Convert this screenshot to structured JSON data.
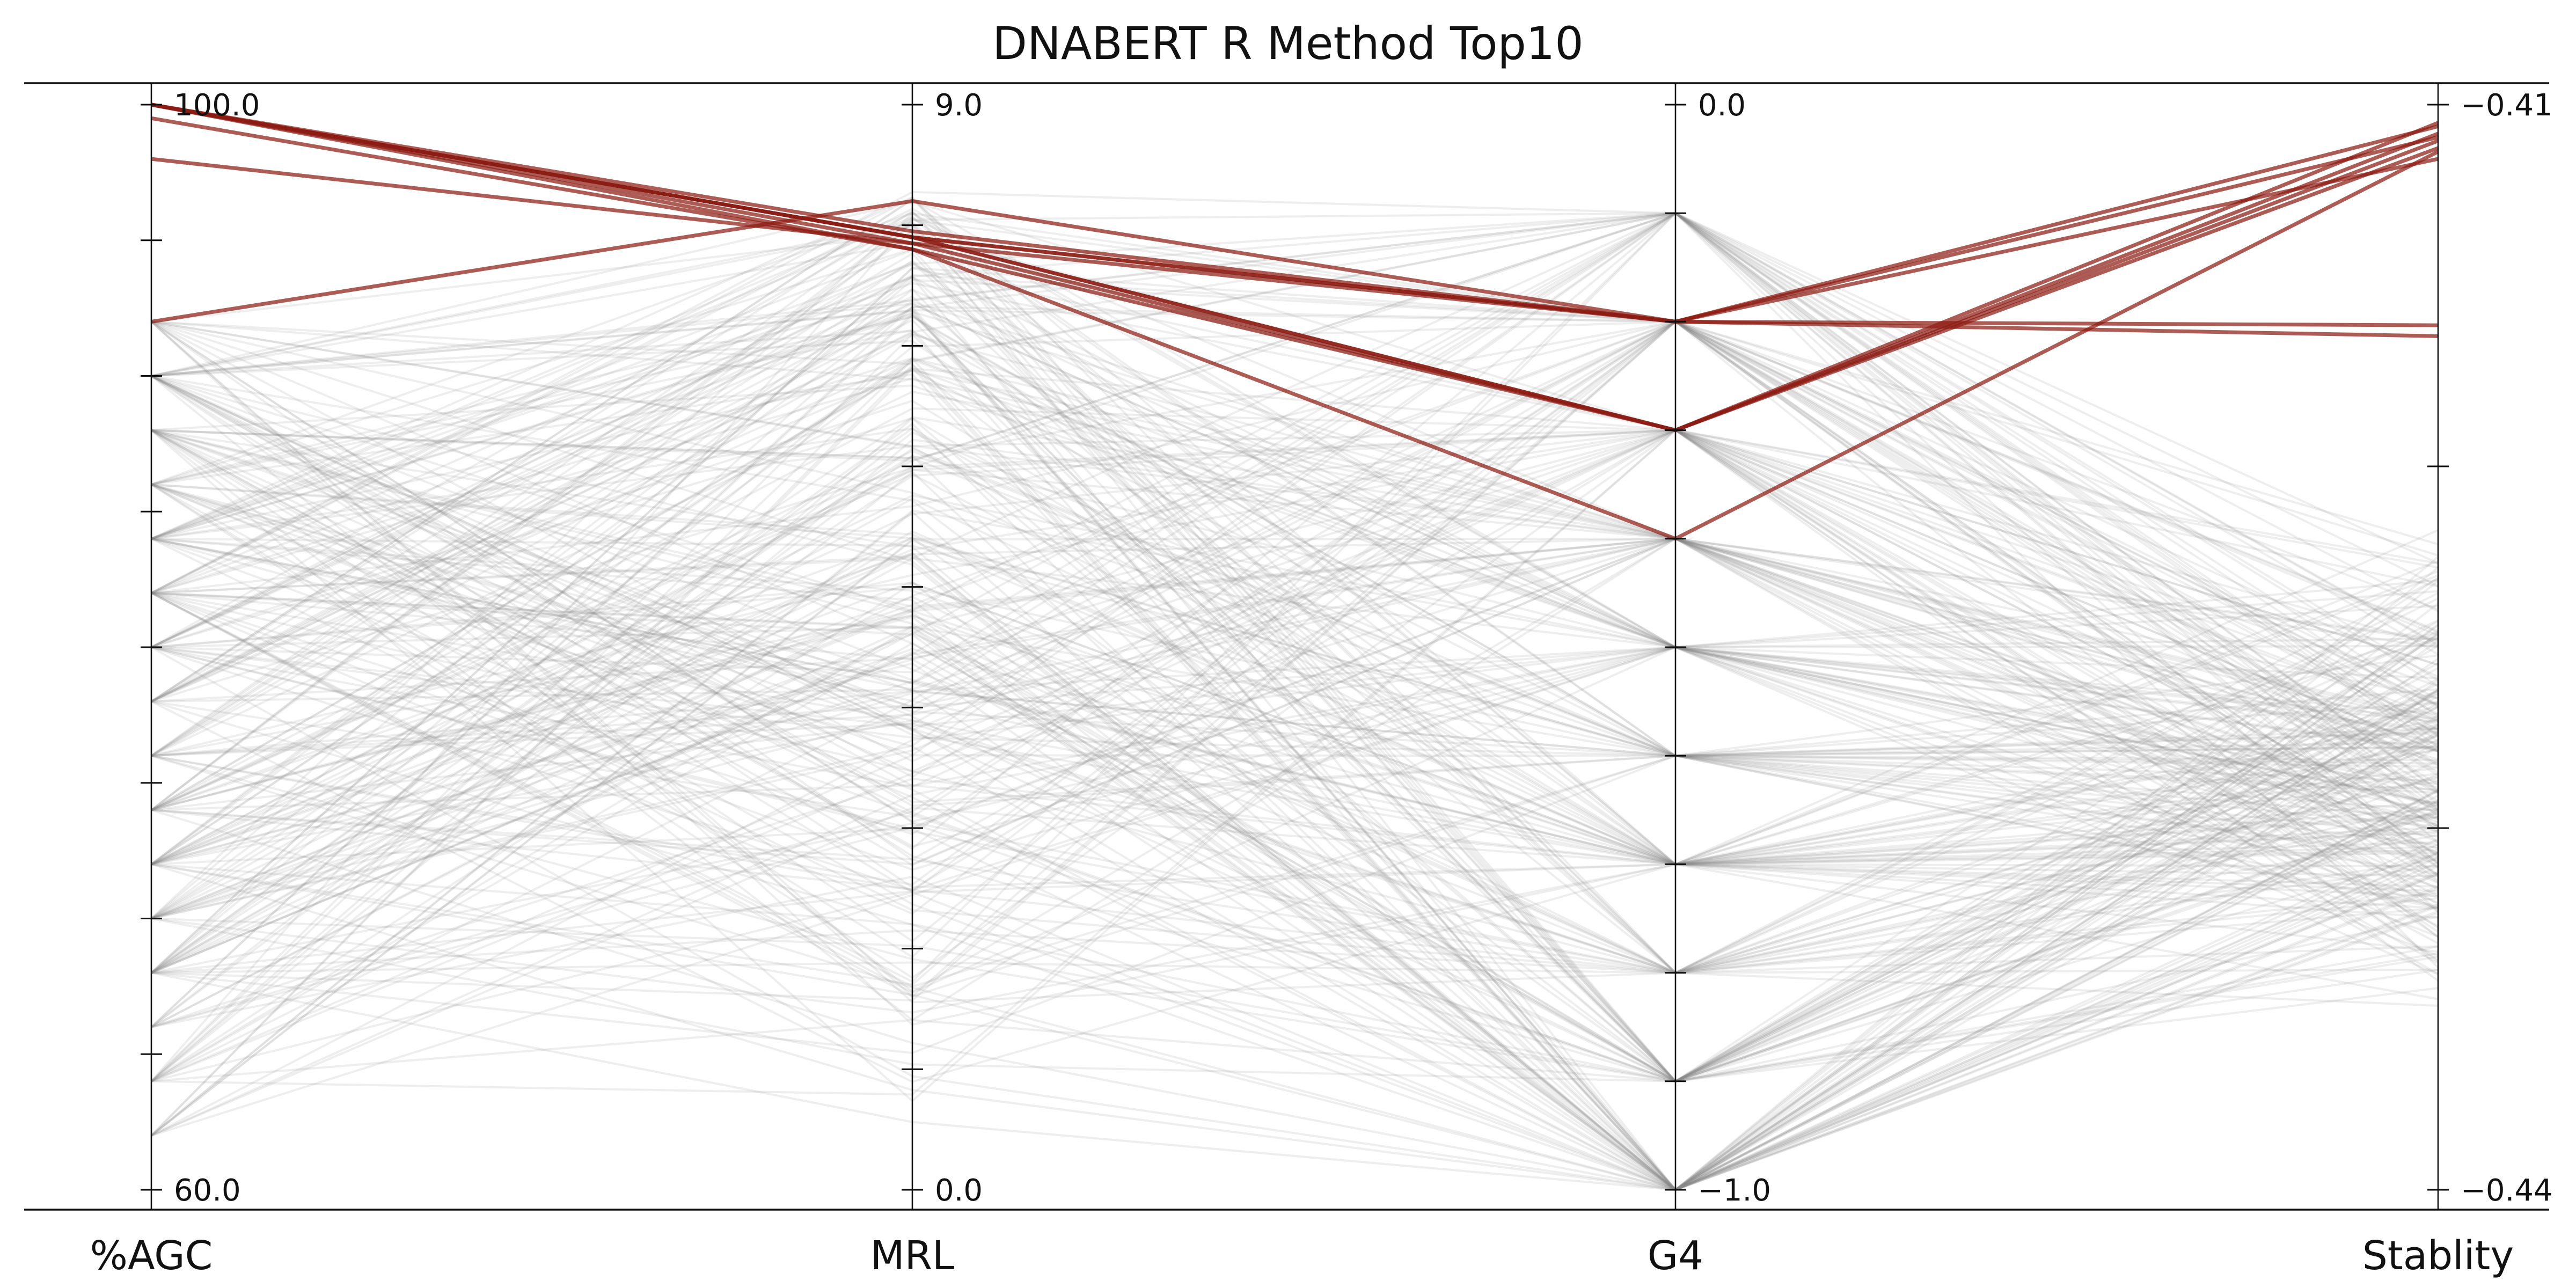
{
  "chart_data": {
    "type": "parallel-coordinates",
    "title": "DNABERT R Method Top10",
    "axes": [
      {
        "label": "%AGC",
        "range": [
          60.0,
          100.0
        ],
        "top_label": "100.0",
        "bottom_label": "60.0",
        "ticks": [
          60,
          65,
          70,
          75,
          80,
          85,
          90,
          95,
          100
        ]
      },
      {
        "label": "MRL",
        "range": [
          0.0,
          9.0
        ],
        "top_label": "9.0",
        "bottom_label": "0.0",
        "ticks": [
          0,
          1,
          2,
          3,
          4,
          5,
          6,
          7,
          8,
          9
        ]
      },
      {
        "label": "G4",
        "range": [
          -1.0,
          0.0
        ],
        "top_label": "0.0",
        "bottom_label": "−1.0",
        "ticks": [
          -1.0,
          -0.9,
          -0.8,
          -0.7,
          -0.6,
          -0.5,
          -0.4,
          -0.3,
          -0.2,
          -0.1,
          0.0
        ]
      },
      {
        "label": "Stablity",
        "range": [
          -0.44,
          -0.41
        ],
        "top_label": "−0.41",
        "bottom_label": "−0.44",
        "ticks": [
          -0.44,
          -0.43,
          -0.42,
          -0.41
        ]
      }
    ],
    "highlight_series": [
      {
        "values": [
          100.0,
          7.9,
          -0.2,
          -0.4106
        ]
      },
      {
        "values": [
          100.0,
          7.9,
          -0.3,
          -0.4108
        ]
      },
      {
        "values": [
          100.0,
          7.85,
          -0.3,
          -0.411
        ]
      },
      {
        "values": [
          100.0,
          7.8,
          -0.3,
          -0.4112
        ]
      },
      {
        "values": [
          98.0,
          7.85,
          -0.2,
          -0.4115
        ]
      },
      {
        "values": [
          92.0,
          8.2,
          -0.2,
          -0.4109
        ]
      },
      {
        "values": [
          100.0,
          7.9,
          -0.2,
          -0.4164
        ]
      },
      {
        "values": [
          100.0,
          7.95,
          -0.2,
          -0.4161
        ]
      },
      {
        "values": [
          100.0,
          7.9,
          -0.3,
          -0.4105
        ]
      },
      {
        "values": [
          99.5,
          7.8,
          -0.4,
          -0.4113
        ]
      }
    ],
    "background_series_count": 300,
    "background_distribution": {
      "AGC_levels": [
        92,
        90,
        88,
        86,
        84,
        82,
        80,
        78,
        76,
        74,
        72,
        70,
        68,
        66,
        64,
        62
      ],
      "G4_levels": [
        -0.1,
        -0.2,
        -0.3,
        -0.4,
        -0.5,
        -0.6,
        -0.7,
        -0.8,
        -0.9,
        -1.0
      ],
      "MRL_range": [
        0.5,
        8.3
      ],
      "Stablity_range": [
        -0.4355,
        -0.4215
      ]
    },
    "colors": {
      "highlight": "#8c1c13",
      "background": "#8a8a8a",
      "axis": "#111111"
    }
  }
}
